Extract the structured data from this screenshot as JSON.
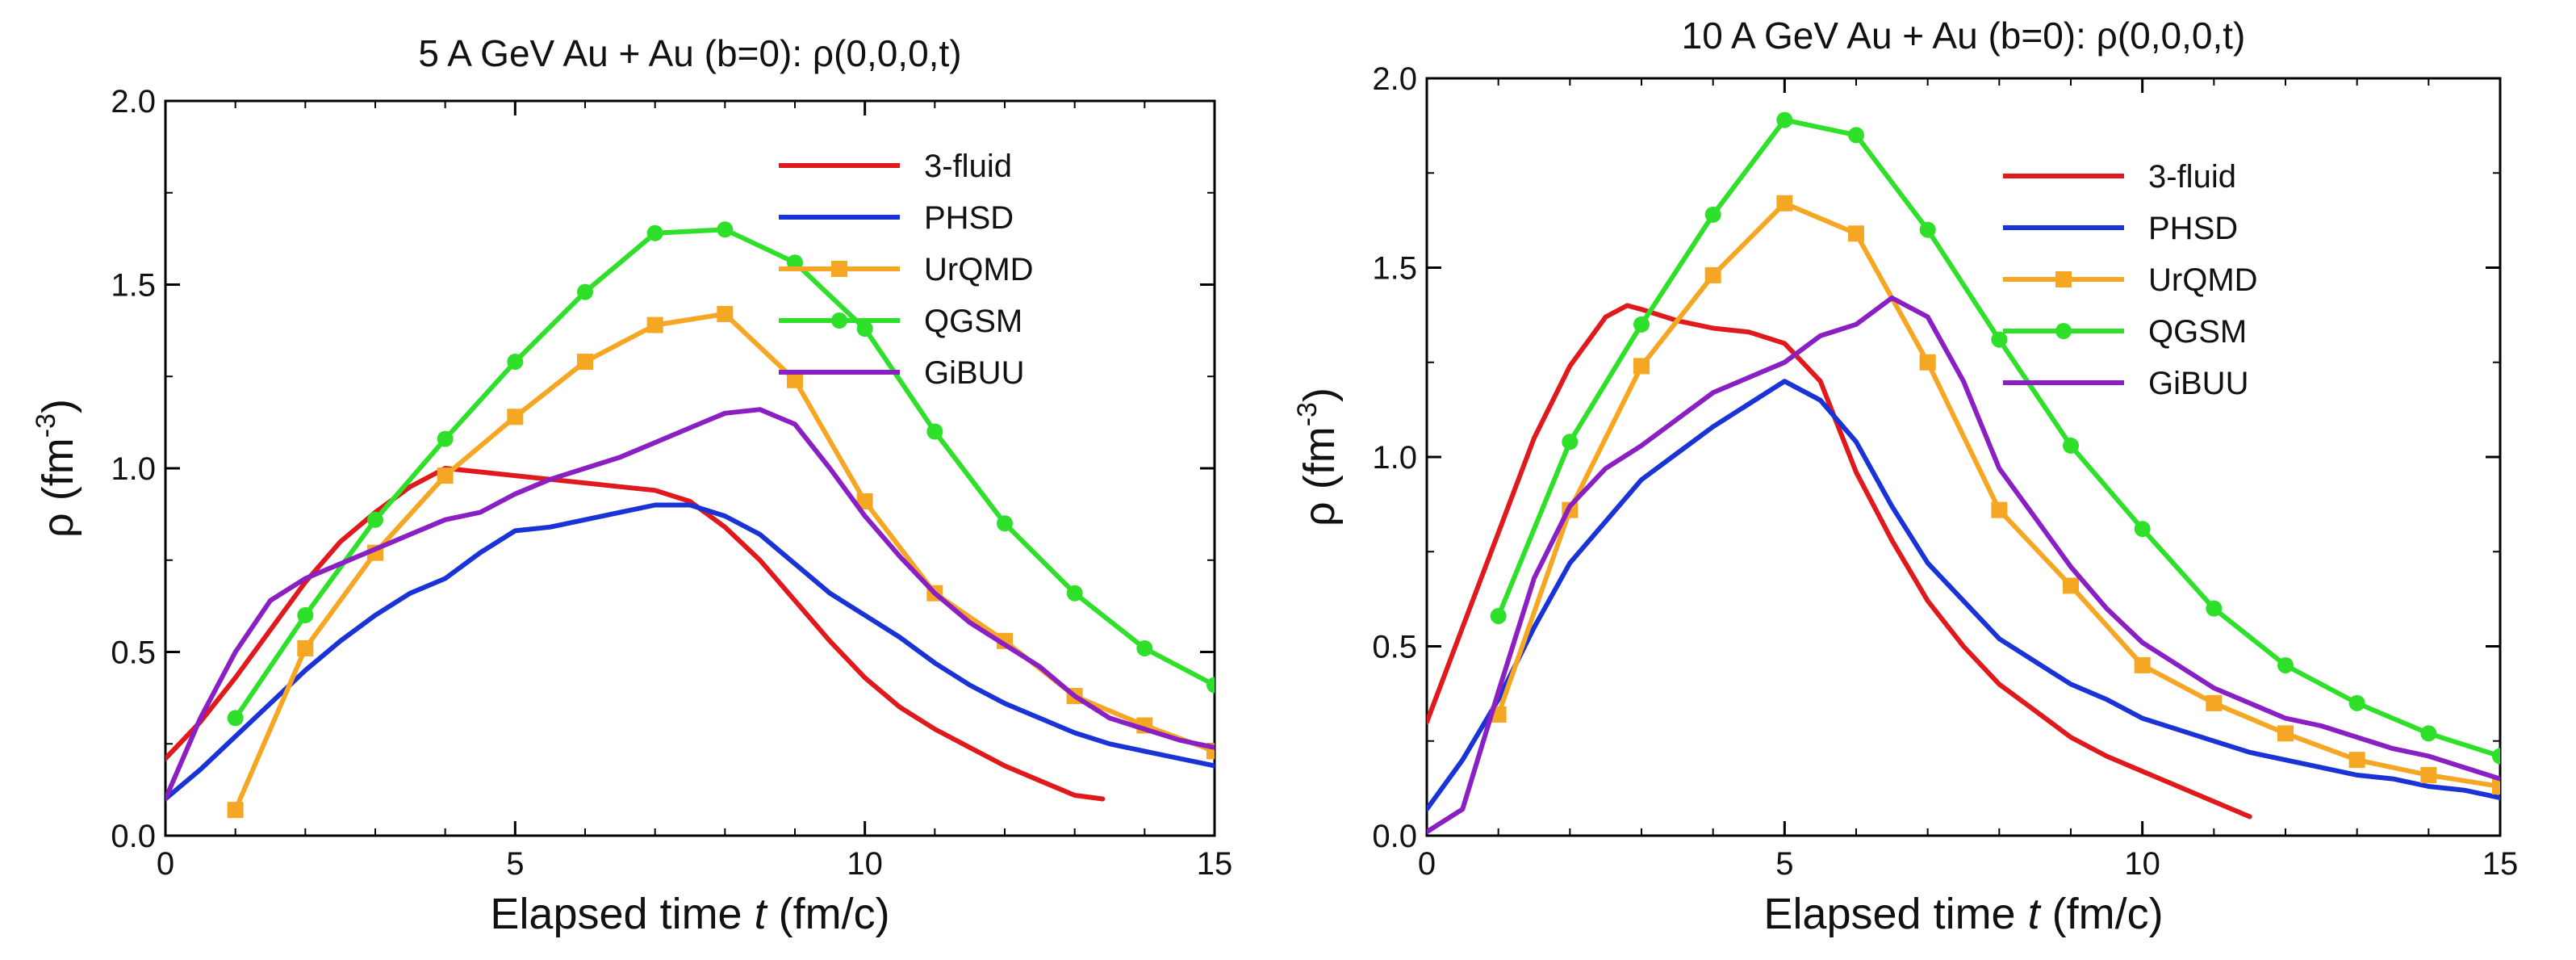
{
  "colors": {
    "3-fluid": "#e0191c",
    "PHSD": "#1a33d6",
    "UrQMD": "#f5a623",
    "QGSM": "#2fe02a",
    "GiBUU": "#8a1fc4"
  },
  "chart_data": [
    {
      "type": "line",
      "title": "5 A GeV Au + Au (b=0):  ρ(0,0,0,t)",
      "xlabel_main": "Elapsed time",
      "xlabel_var": "t",
      "xlabel_unit": "(fm/c)",
      "ylabel": "ρ (fm",
      "ylabel_exp": "-3",
      "ylabel_close": ")",
      "xlim": [
        0,
        15
      ],
      "ylim": [
        0,
        2
      ],
      "xticks": [
        0,
        5,
        10,
        15
      ],
      "xtick_labels": [
        "0",
        "5",
        "10",
        "15"
      ],
      "yticks": [
        0,
        0.5,
        1,
        1.5,
        2
      ],
      "ytick_labels": [
        "0.0",
        "0.5",
        "1.0",
        "1.5",
        "2.0"
      ],
      "legend": [
        "3-fluid",
        "PHSD",
        "UrQMD",
        "QGSM",
        "GiBUU"
      ],
      "legend_position": "top-right",
      "series": [
        {
          "name": "3-fluid",
          "marker": "none",
          "x": [
            0,
            0.5,
            1,
            1.5,
            2,
            2.5,
            3,
            3.5,
            4,
            4.5,
            5,
            5.5,
            6,
            6.5,
            7,
            7.5,
            8,
            8.5,
            9,
            9.5,
            10,
            10.5,
            11,
            11.5,
            12,
            12.5,
            13,
            13.4
          ],
          "y": [
            0.21,
            0.31,
            0.43,
            0.56,
            0.69,
            0.8,
            0.88,
            0.95,
            1.0,
            0.99,
            0.98,
            0.97,
            0.96,
            0.95,
            0.94,
            0.91,
            0.84,
            0.75,
            0.64,
            0.53,
            0.43,
            0.35,
            0.29,
            0.24,
            0.19,
            0.15,
            0.11,
            0.1
          ]
        },
        {
          "name": "PHSD",
          "marker": "none",
          "x": [
            0,
            0.5,
            1,
            1.5,
            2,
            2.5,
            3,
            3.5,
            4,
            4.5,
            5,
            5.5,
            6,
            6.5,
            7,
            7.5,
            8,
            8.5,
            9,
            9.5,
            10,
            10.5,
            11,
            11.5,
            12,
            12.5,
            13,
            13.5,
            14,
            14.5,
            15
          ],
          "y": [
            0.1,
            0.18,
            0.27,
            0.36,
            0.45,
            0.53,
            0.6,
            0.66,
            0.7,
            0.77,
            0.83,
            0.84,
            0.86,
            0.88,
            0.9,
            0.9,
            0.87,
            0.82,
            0.74,
            0.66,
            0.6,
            0.54,
            0.47,
            0.41,
            0.36,
            0.32,
            0.28,
            0.25,
            0.23,
            0.21,
            0.19
          ]
        },
        {
          "name": "UrQMD",
          "marker": "square",
          "x": [
            1,
            2,
            3,
            4,
            5,
            6,
            7,
            8,
            9,
            10,
            11,
            12,
            13,
            14,
            15
          ],
          "y": [
            0.07,
            0.51,
            0.77,
            0.98,
            1.14,
            1.29,
            1.39,
            1.42,
            1.24,
            0.91,
            0.66,
            0.53,
            0.38,
            0.3,
            0.23
          ]
        },
        {
          "name": "QGSM",
          "marker": "circle",
          "x": [
            1,
            2,
            3,
            4,
            5,
            6,
            7,
            8,
            9,
            10,
            11,
            12,
            13,
            14,
            15
          ],
          "y": [
            0.32,
            0.6,
            0.86,
            1.08,
            1.29,
            1.48,
            1.64,
            1.65,
            1.56,
            1.38,
            1.1,
            0.85,
            0.66,
            0.51,
            0.41
          ]
        },
        {
          "name": "GiBUU",
          "marker": "none",
          "x": [
            0,
            0.5,
            1,
            1.5,
            2,
            2.5,
            3,
            3.5,
            4,
            4.5,
            5,
            5.5,
            6,
            6.5,
            7,
            7.5,
            8,
            8.5,
            9,
            9.5,
            10,
            10.5,
            11,
            11.5,
            12,
            12.5,
            13,
            13.5,
            14,
            14.5,
            15
          ],
          "y": [
            0.1,
            0.32,
            0.5,
            0.64,
            0.7,
            0.74,
            0.78,
            0.82,
            0.86,
            0.88,
            0.93,
            0.97,
            1.0,
            1.03,
            1.07,
            1.11,
            1.15,
            1.16,
            1.12,
            1.0,
            0.87,
            0.76,
            0.66,
            0.58,
            0.52,
            0.46,
            0.38,
            0.32,
            0.29,
            0.26,
            0.24
          ]
        }
      ]
    },
    {
      "type": "line",
      "title": "10 A GeV Au + Au (b=0):  ρ(0,0,0,t)",
      "xlabel_main": "Elapsed time",
      "xlabel_var": "t",
      "xlabel_unit": "(fm/c)",
      "ylabel": "ρ (fm",
      "ylabel_exp": "-3",
      "ylabel_close": ")",
      "xlim": [
        0,
        15
      ],
      "ylim": [
        0,
        2
      ],
      "xticks": [
        0,
        5,
        10,
        15
      ],
      "xtick_labels": [
        "0",
        "5",
        "10",
        "15"
      ],
      "yticks": [
        0,
        0.5,
        1,
        1.5,
        2
      ],
      "ytick_labels": [
        "0.0",
        "0.5",
        "1.0",
        "1.5",
        "2.0"
      ],
      "legend": [
        "3-fluid",
        "PHSD",
        "UrQMD",
        "QGSM",
        "GiBUU"
      ],
      "legend_position": "top-right",
      "series": [
        {
          "name": "3-fluid",
          "marker": "none",
          "x": [
            0,
            0.5,
            1,
            1.5,
            2,
            2.5,
            2.8,
            3,
            3.5,
            4,
            4.5,
            5,
            5.5,
            6,
            6.5,
            7,
            7.5,
            8,
            8.5,
            9,
            9.5,
            10,
            10.5,
            11,
            11.5
          ],
          "y": [
            0.3,
            0.55,
            0.8,
            1.05,
            1.24,
            1.37,
            1.4,
            1.39,
            1.36,
            1.34,
            1.33,
            1.3,
            1.2,
            0.96,
            0.78,
            0.62,
            0.5,
            0.4,
            0.33,
            0.26,
            0.21,
            0.17,
            0.13,
            0.09,
            0.05
          ]
        },
        {
          "name": "PHSD",
          "marker": "none",
          "x": [
            0,
            0.5,
            1,
            1.5,
            2,
            2.5,
            3,
            3.5,
            4,
            4.5,
            5,
            5.5,
            6,
            6.5,
            7,
            7.5,
            8,
            8.5,
            9,
            9.5,
            10,
            10.5,
            11,
            11.5,
            12,
            12.5,
            13,
            13.5,
            14,
            14.5,
            15
          ],
          "y": [
            0.07,
            0.2,
            0.36,
            0.55,
            0.72,
            0.83,
            0.94,
            1.01,
            1.08,
            1.14,
            1.2,
            1.15,
            1.04,
            0.87,
            0.72,
            0.62,
            0.52,
            0.46,
            0.4,
            0.36,
            0.31,
            0.28,
            0.25,
            0.22,
            0.2,
            0.18,
            0.16,
            0.15,
            0.13,
            0.12,
            0.1
          ]
        },
        {
          "name": "UrQMD",
          "marker": "square",
          "x": [
            1,
            2,
            3,
            4,
            5,
            6,
            7,
            8,
            9,
            10,
            11,
            12,
            13,
            14,
            15
          ],
          "y": [
            0.32,
            0.86,
            1.24,
            1.48,
            1.67,
            1.59,
            1.25,
            0.86,
            0.66,
            0.45,
            0.35,
            0.27,
            0.2,
            0.16,
            0.13
          ]
        },
        {
          "name": "QGSM",
          "marker": "circle",
          "x": [
            1,
            2,
            3,
            4,
            5,
            6,
            7,
            8,
            9,
            10,
            11,
            12,
            13,
            14,
            15
          ],
          "y": [
            0.58,
            1.04,
            1.35,
            1.64,
            1.89,
            1.85,
            1.6,
            1.31,
            1.03,
            0.81,
            0.6,
            0.45,
            0.35,
            0.27,
            0.21
          ]
        },
        {
          "name": "GiBUU",
          "marker": "none",
          "x": [
            0,
            0.5,
            1,
            1.5,
            2,
            2.5,
            3,
            3.5,
            4,
            4.5,
            5,
            5.5,
            6,
            6.5,
            7,
            7.5,
            8,
            8.5,
            9,
            9.5,
            10,
            10.5,
            11,
            11.5,
            12,
            12.5,
            13,
            13.5,
            14,
            14.5,
            15
          ],
          "y": [
            0.01,
            0.07,
            0.38,
            0.68,
            0.87,
            0.97,
            1.03,
            1.1,
            1.17,
            1.21,
            1.25,
            1.32,
            1.35,
            1.42,
            1.37,
            1.2,
            0.97,
            0.84,
            0.71,
            0.6,
            0.51,
            0.45,
            0.39,
            0.35,
            0.31,
            0.29,
            0.26,
            0.23,
            0.21,
            0.18,
            0.15
          ]
        }
      ]
    }
  ]
}
